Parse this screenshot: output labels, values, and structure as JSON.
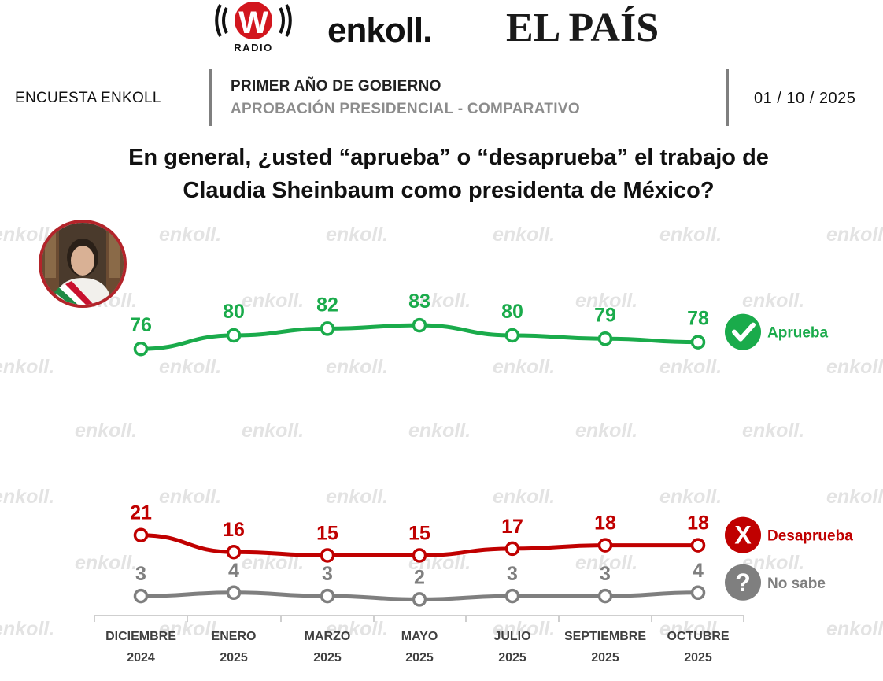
{
  "logos": {
    "w_radio_letter": "W",
    "w_radio_sub": "RADIO",
    "enkoll": "enkoll.",
    "el_pais": "EL PAÍS"
  },
  "header": {
    "left": "ENCUESTA ENKOLL",
    "title": "PRIMER AÑO DE GOBIERNO",
    "subtitle": "APROBACIÓN PRESIDENCIAL - COMPARATIVO",
    "date": "01 / 10 / 2025"
  },
  "question": {
    "line1": "En general, ¿usted “aprueba” o “desaprueba” el trabajo de",
    "line2": "Claudia Sheinbaum como presidenta de México?"
  },
  "watermark_text": "enkoll.",
  "colors": {
    "aprueba": "#1aab4b",
    "desaprueba": "#c00000",
    "no_sabe": "#7f7f7f",
    "divider": "#7f7f7f",
    "portrait_ring": "#b3242a"
  },
  "chart_data": {
    "type": "line",
    "categories": [
      [
        "DICIEMBRE",
        "2024"
      ],
      [
        "ENERO",
        "2025"
      ],
      [
        "MARZO",
        "2025"
      ],
      [
        "MAYO",
        "2025"
      ],
      [
        "JULIO",
        "2025"
      ],
      [
        "SEPTIEMBRE",
        "2025"
      ],
      [
        "OCTUBRE",
        "2025"
      ]
    ],
    "series": [
      {
        "name": "Aprueba",
        "values": [
          76,
          80,
          82,
          83,
          80,
          79,
          78
        ],
        "color": "#1aab4b",
        "icon": "check-icon",
        "icon_glyph": "✓"
      },
      {
        "name": "Desaprueba",
        "values": [
          21,
          16,
          15,
          15,
          17,
          18,
          18
        ],
        "color": "#c00000",
        "icon": "x-icon",
        "icon_glyph": "X"
      },
      {
        "name": "No sabe",
        "values": [
          3,
          4,
          3,
          2,
          3,
          3,
          4
        ],
        "color": "#7f7f7f",
        "icon": "question-icon",
        "icon_glyph": "?"
      }
    ],
    "legend_position": "right",
    "grid": false,
    "data_labels": true
  }
}
